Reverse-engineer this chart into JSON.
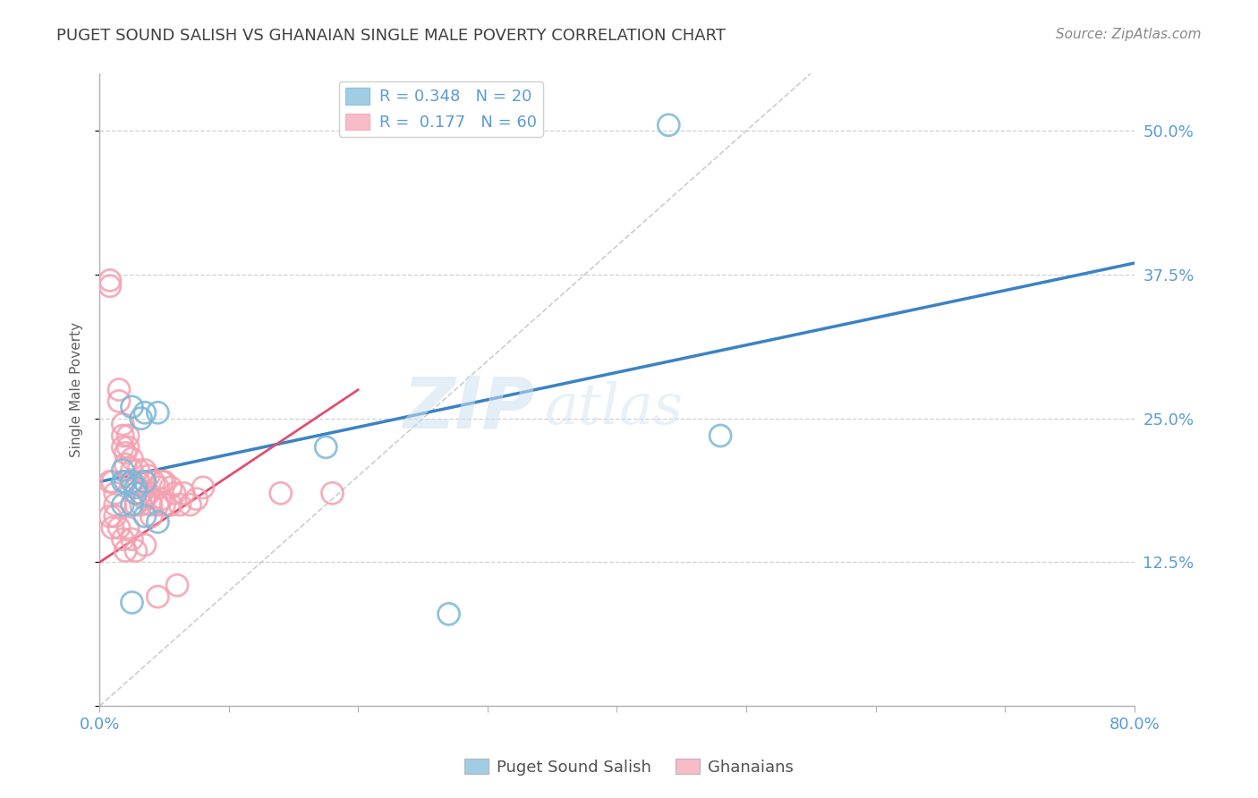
{
  "title": "PUGET SOUND SALISH VS GHANAIAN SINGLE MALE POVERTY CORRELATION CHART",
  "source": "Source: ZipAtlas.com",
  "ylabel": "Single Male Poverty",
  "xlim": [
    0.0,
    0.8
  ],
  "ylim": [
    0.0,
    0.55
  ],
  "xticks": [
    0.0,
    0.1,
    0.2,
    0.3,
    0.4,
    0.5,
    0.6,
    0.7,
    0.8
  ],
  "yticks": [
    0.0,
    0.125,
    0.25,
    0.375,
    0.5
  ],
  "xticklabels": [
    "0.0%",
    "",
    "",
    "",
    "",
    "",
    "",
    "",
    "80.0%"
  ],
  "yticklabels": [
    "",
    "12.5%",
    "25.0%",
    "37.5%",
    "50.0%"
  ],
  "blue_color": "#7ab8d9",
  "pink_color": "#f4a0b0",
  "blue_line_color": "#3b82c4",
  "pink_line_color": "#e05070",
  "watermark_zip": "ZIP",
  "watermark_atlas": "atlas",
  "blue_scatter_x": [
    0.018,
    0.025,
    0.032,
    0.44,
    0.018,
    0.035,
    0.045,
    0.02,
    0.025,
    0.028,
    0.035,
    0.028,
    0.018,
    0.025,
    0.035,
    0.045,
    0.48,
    0.175,
    0.27,
    0.025
  ],
  "blue_scatter_y": [
    0.205,
    0.26,
    0.25,
    0.505,
    0.195,
    0.255,
    0.255,
    0.195,
    0.195,
    0.19,
    0.195,
    0.185,
    0.175,
    0.175,
    0.165,
    0.16,
    0.235,
    0.225,
    0.08,
    0.09
  ],
  "pink_scatter_x": [
    0.008,
    0.008,
    0.008,
    0.012,
    0.012,
    0.015,
    0.015,
    0.018,
    0.018,
    0.018,
    0.02,
    0.02,
    0.022,
    0.022,
    0.025,
    0.025,
    0.025,
    0.028,
    0.028,
    0.03,
    0.03,
    0.032,
    0.032,
    0.035,
    0.035,
    0.035,
    0.038,
    0.038,
    0.04,
    0.04,
    0.042,
    0.045,
    0.045,
    0.048,
    0.048,
    0.05,
    0.05,
    0.055,
    0.055,
    0.058,
    0.062,
    0.065,
    0.07,
    0.075,
    0.08,
    0.008,
    0.01,
    0.012,
    0.015,
    0.018,
    0.02,
    0.022,
    0.025,
    0.028,
    0.035,
    0.045,
    0.06,
    0.14,
    0.18,
    0.01
  ],
  "pink_scatter_y": [
    0.37,
    0.365,
    0.195,
    0.185,
    0.175,
    0.275,
    0.265,
    0.245,
    0.235,
    0.225,
    0.22,
    0.21,
    0.235,
    0.225,
    0.215,
    0.205,
    0.195,
    0.185,
    0.175,
    0.205,
    0.195,
    0.185,
    0.175,
    0.205,
    0.195,
    0.18,
    0.2,
    0.185,
    0.175,
    0.165,
    0.195,
    0.19,
    0.175,
    0.195,
    0.18,
    0.195,
    0.175,
    0.19,
    0.175,
    0.185,
    0.175,
    0.185,
    0.175,
    0.18,
    0.19,
    0.165,
    0.155,
    0.165,
    0.155,
    0.145,
    0.135,
    0.155,
    0.145,
    0.135,
    0.14,
    0.095,
    0.105,
    0.185,
    0.185,
    0.195
  ],
  "blue_line_x": [
    0.0,
    0.8
  ],
  "blue_line_y": [
    0.195,
    0.385
  ],
  "pink_line_x": [
    0.0,
    0.2
  ],
  "pink_line_y": [
    0.125,
    0.275
  ],
  "diag_line_x": [
    0.0,
    0.55
  ],
  "diag_line_y": [
    0.0,
    0.55
  ],
  "grid_color": "#d0d0d0",
  "tick_color": "#5b9bd5",
  "title_color": "#404040"
}
